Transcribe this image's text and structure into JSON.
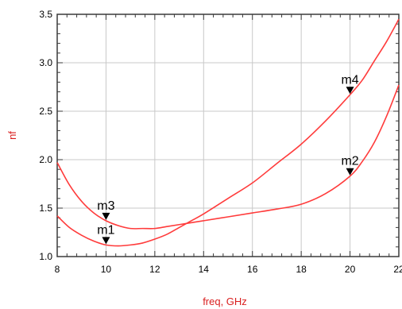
{
  "chart_data": {
    "type": "line",
    "xlabel": "freq, GHz",
    "ylabel": "nf",
    "xlim": [
      8,
      22
    ],
    "ylim": [
      1.0,
      3.5
    ],
    "x_ticks": [
      "8",
      "10",
      "12",
      "14",
      "16",
      "18",
      "20",
      "22"
    ],
    "y_ticks": [
      "1.0",
      "1.5",
      "2.0",
      "2.5",
      "3.0",
      "3.5"
    ],
    "grid": true,
    "series": [
      {
        "x": [
          8,
          8.5,
          9,
          9.5,
          10,
          10.5,
          11,
          11.5,
          12,
          12.5,
          13,
          13.5,
          14,
          15,
          16,
          17,
          18,
          19,
          20,
          20.5,
          21,
          21.5,
          22
        ],
        "y": [
          1.42,
          1.3,
          1.22,
          1.16,
          1.12,
          1.11,
          1.12,
          1.14,
          1.18,
          1.23,
          1.3,
          1.37,
          1.44,
          1.6,
          1.76,
          1.96,
          2.16,
          2.4,
          2.67,
          2.82,
          3.02,
          3.22,
          3.45
        ]
      },
      {
        "x": [
          8,
          8.5,
          9,
          9.5,
          10,
          10.5,
          11,
          11.5,
          12,
          12.5,
          13,
          13.5,
          14,
          15,
          16,
          17,
          18,
          19,
          20,
          20.5,
          21,
          21.5,
          22
        ],
        "y": [
          1.97,
          1.74,
          1.57,
          1.45,
          1.37,
          1.32,
          1.29,
          1.29,
          1.29,
          1.31,
          1.33,
          1.35,
          1.37,
          1.41,
          1.45,
          1.49,
          1.54,
          1.65,
          1.83,
          1.98,
          2.18,
          2.45,
          2.77
        ]
      }
    ],
    "markers": [
      {
        "label": "m1",
        "x": 10,
        "y": 1.12
      },
      {
        "label": "m2",
        "x": 20,
        "y": 1.83
      },
      {
        "label": "m3",
        "x": 10,
        "y": 1.37
      },
      {
        "label": "m4",
        "x": 20,
        "y": 2.67
      }
    ],
    "colors": {
      "line": "#ff3b3b",
      "axis_title": "#d91e1e",
      "grid": "#c8c8c8",
      "frame": "#3a3a3a",
      "marker": "#000000"
    }
  }
}
